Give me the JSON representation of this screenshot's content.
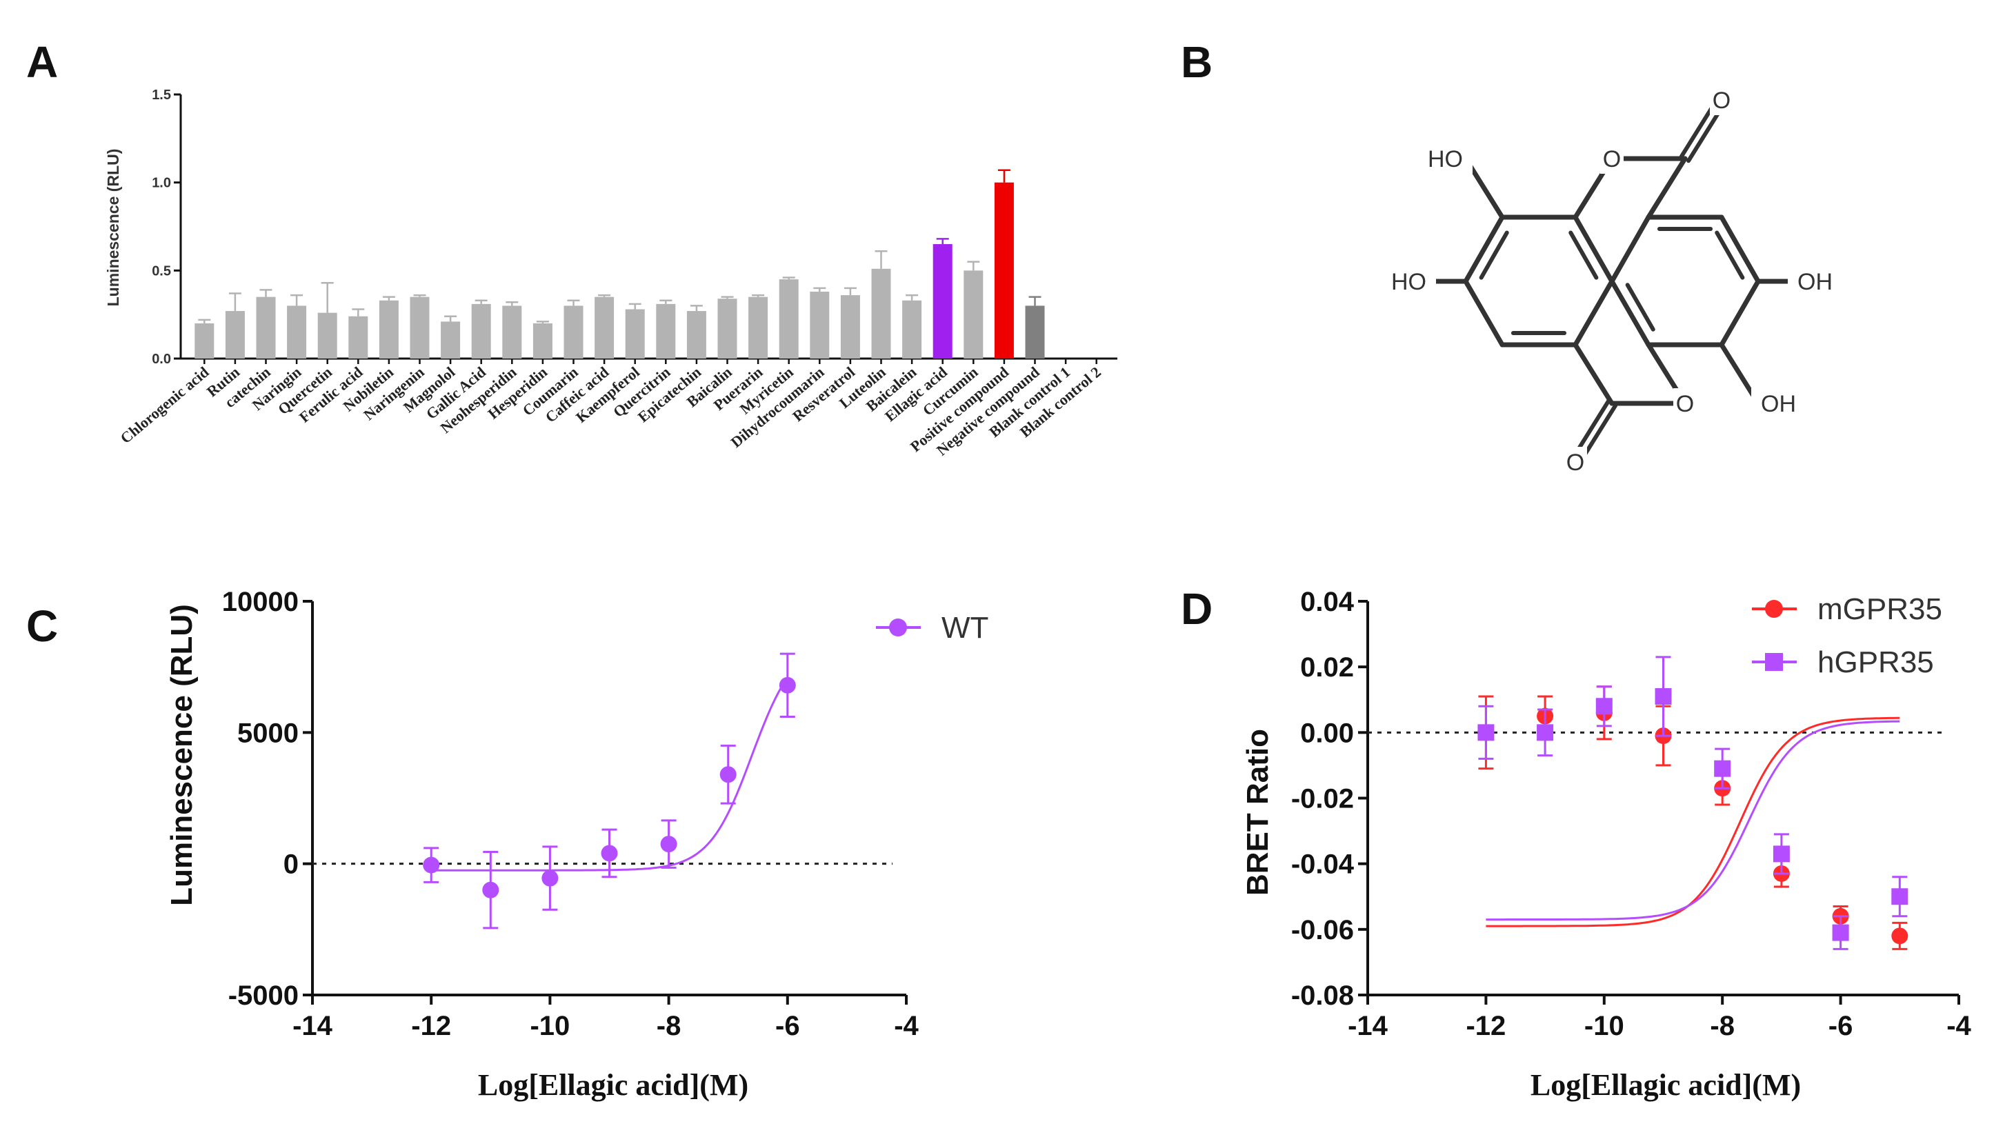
{
  "panels": {
    "A": "A",
    "B": "B",
    "C": "C",
    "D": "D"
  },
  "colors": {
    "gray": "#b3b3b3",
    "dark_gray": "#808080",
    "purple": "#a020f0",
    "red": "#ee0000",
    "curve_red": "#ff2a2a",
    "curve_violet": "#b44cff",
    "axis": "#111111",
    "mol": "#333333"
  },
  "chart_data": [
    {
      "panel": "A",
      "type": "bar",
      "ylabel": "Luminescence (RLU)",
      "ylim": [
        0,
        1.5
      ],
      "yticks": [
        "0.0",
        "0.5",
        "1.0",
        "1.5"
      ],
      "categories": [
        "Chlorogenic acid",
        "Rutin",
        "catechin",
        "Naringin",
        "Quercetin",
        "Ferulic acid",
        "Nobiletin",
        "Naringenin",
        "Magnolol",
        "Gallic Acid",
        "Neohesperidin",
        "Hesperidin",
        "Coumarin",
        "Caffeic acid",
        "Kaempferol",
        "Quercitrin",
        "Epicatechin",
        "Baicalin",
        "Puerarin",
        "Myricetin",
        "Dihydrocoumarin",
        "Resveratrol",
        "Luteolin",
        "Baicalein",
        "Ellagic acid",
        "Curcumin",
        "Positive compound",
        "Negative compound",
        "Blank control 1",
        "Blank control 2"
      ],
      "values": [
        0.2,
        0.27,
        0.35,
        0.3,
        0.26,
        0.24,
        0.33,
        0.35,
        0.21,
        0.31,
        0.3,
        0.2,
        0.3,
        0.35,
        0.28,
        0.31,
        0.27,
        0.34,
        0.35,
        0.45,
        0.38,
        0.36,
        0.51,
        0.33,
        0.65,
        0.5,
        1.0,
        0.3,
        0,
        0
      ],
      "errors": [
        0.02,
        0.1,
        0.04,
        0.06,
        0.17,
        0.04,
        0.02,
        0.01,
        0.03,
        0.02,
        0.02,
        0.01,
        0.03,
        0.01,
        0.03,
        0.02,
        0.03,
        0.01,
        0.01,
        0.01,
        0.02,
        0.04,
        0.1,
        0.03,
        0.03,
        0.05,
        0.07,
        0.05,
        0,
        0
      ],
      "bar_colors": [
        "gray",
        "gray",
        "gray",
        "gray",
        "gray",
        "gray",
        "gray",
        "gray",
        "gray",
        "gray",
        "gray",
        "gray",
        "gray",
        "gray",
        "gray",
        "gray",
        "gray",
        "gray",
        "gray",
        "gray",
        "gray",
        "gray",
        "gray",
        "gray",
        "purple",
        "gray",
        "red",
        "dark_gray",
        "gray",
        "gray"
      ]
    },
    {
      "panel": "C",
      "type": "scatter",
      "xlabel": "Log[Ellagic acid](M)",
      "ylabel": "Luminescence (RLU)",
      "xlim": [
        -14,
        -4
      ],
      "ylim": [
        -5000,
        10000
      ],
      "xticks": [
        "-14",
        "-12",
        "-10",
        "-8",
        "-6",
        "-4"
      ],
      "yticks": [
        "-5000",
        "0",
        "5000",
        "10000"
      ],
      "reference_line_y": 0,
      "legend_position": "top-right",
      "series": [
        {
          "name": "WT",
          "color": "curve_violet",
          "marker": "circle",
          "x": [
            -12,
            -11,
            -10,
            -9,
            -8,
            -7,
            -6
          ],
          "y": [
            -50,
            -1000,
            -550,
            400,
            750,
            3400,
            6800
          ],
          "err": [
            650,
            1450,
            1200,
            900,
            900,
            1100,
            1200
          ],
          "fit": {
            "bottom": -250,
            "top": 8500,
            "log_ec50": -6.6,
            "hill": 1.2
          }
        }
      ]
    },
    {
      "panel": "D",
      "type": "scatter",
      "xlabel": "Log[Ellagic acid](M)",
      "ylabel": "BRET Ratio",
      "xlim": [
        -14,
        -4
      ],
      "ylim": [
        -0.08,
        0.04
      ],
      "xticks": [
        "-14",
        "-12",
        "-10",
        "-8",
        "-6",
        "-4"
      ],
      "yticks": [
        "-0.08",
        "-0.06",
        "-0.04",
        "-0.02",
        "0.00",
        "0.02",
        "0.04"
      ],
      "reference_line_y": 0,
      "legend_position": "top-right",
      "series": [
        {
          "name": "mGPR35",
          "color": "curve_red",
          "marker": "circle",
          "x": [
            -12,
            -11,
            -10,
            -9,
            -8,
            -7,
            -6,
            -5
          ],
          "y": [
            0.0,
            0.005,
            0.006,
            -0.001,
            -0.017,
            -0.043,
            -0.056,
            -0.062
          ],
          "err": [
            0.011,
            0.006,
            0.008,
            0.009,
            0.005,
            0.004,
            0.003,
            0.004
          ],
          "fit": {
            "bottom": -0.059,
            "top": 0.0045,
            "log_ec50": -7.7,
            "hill": 1.1
          }
        },
        {
          "name": "hGPR35",
          "color": "curve_violet",
          "marker": "square",
          "x": [
            -12,
            -11,
            -10,
            -9,
            -8,
            -7,
            -6,
            -5
          ],
          "y": [
            0.0,
            0.0,
            0.008,
            0.011,
            -0.011,
            -0.037,
            -0.061,
            -0.05
          ],
          "err": [
            0.008,
            0.007,
            0.006,
            0.012,
            0.006,
            0.006,
            0.005,
            0.006
          ],
          "fit": {
            "bottom": -0.057,
            "top": 0.0035,
            "log_ec50": -7.55,
            "hill": 1.1
          }
        }
      ]
    }
  ],
  "molecule": {
    "name": "Ellagic acid",
    "labels": [
      "HO",
      "HO",
      "OH",
      "OH",
      "O",
      "O",
      "O",
      "O"
    ]
  }
}
